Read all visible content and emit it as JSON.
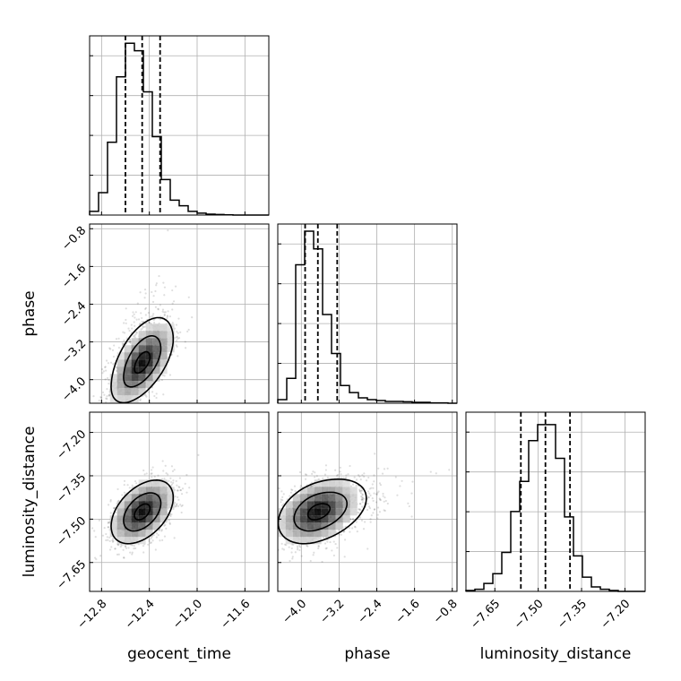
{
  "chart_data": {
    "type": "corner",
    "grid": true,
    "parameters": [
      {
        "name": "geocent_time",
        "range": [
          -12.9,
          -11.4
        ],
        "ticks": [
          -12.8,
          -12.4,
          -12.0,
          -11.6
        ],
        "tick_labels": [
          "−12.8",
          "−12.4",
          "−12.0",
          "−11.6"
        ],
        "quantiles": [
          -12.6,
          -12.46,
          -12.31
        ],
        "hist_edges": [
          -12.9,
          -12.825,
          -12.75,
          -12.675,
          -12.6,
          -12.525,
          -12.45,
          -12.375,
          -12.3,
          -12.225,
          -12.15,
          -12.075,
          -12.0,
          -11.925,
          -11.85,
          -11.775,
          -11.7,
          -11.625,
          -11.55,
          -11.475,
          -11.4
        ],
        "hist_counts": [
          0.02,
          0.12,
          0.39,
          0.74,
          0.92,
          0.88,
          0.66,
          0.42,
          0.19,
          0.08,
          0.05,
          0.02,
          0.01,
          0.005,
          0.003,
          0.001,
          0.0,
          0.0,
          0.0,
          0.0
        ],
        "hist_ymax": 0.95
      },
      {
        "name": "phase",
        "range": [
          -4.5,
          -0.7
        ],
        "ticks": [
          -4.0,
          -3.2,
          -2.4,
          -1.6,
          -0.8
        ],
        "tick_labels": [
          "−4.0",
          "−3.2",
          "−2.4",
          "−1.6",
          "−0.8"
        ],
        "quantiles": [
          -3.92,
          -3.65,
          -3.24
        ],
        "hist_edges": [
          -4.5,
          -4.31,
          -4.12,
          -3.93,
          -3.74,
          -3.55,
          -3.36,
          -3.17,
          -2.98,
          -2.79,
          -2.6,
          -2.41,
          -2.22,
          -2.03,
          -1.84,
          -1.65,
          -1.46,
          -1.27,
          -1.08,
          -0.89,
          -0.7
        ],
        "hist_counts": [
          0.02,
          0.14,
          0.78,
          0.97,
          0.87,
          0.5,
          0.28,
          0.1,
          0.06,
          0.03,
          0.02,
          0.015,
          0.01,
          0.01,
          0.008,
          0.005,
          0.005,
          0.002,
          0.002,
          0.0
        ],
        "hist_ymax": 1.0
      },
      {
        "name": "luminosity_distance",
        "range": [
          -7.75,
          -7.13
        ],
        "ticks": [
          -7.65,
          -7.5,
          -7.35,
          -7.2
        ],
        "tick_labels": [
          "−7.65",
          "−7.50",
          "−7.35",
          "−7.20"
        ],
        "quantiles": [
          -7.56,
          -7.475,
          -7.39
        ],
        "hist_edges": [
          -7.75,
          -7.719,
          -7.688,
          -7.657,
          -7.626,
          -7.595,
          -7.564,
          -7.533,
          -7.502,
          -7.471,
          -7.44,
          -7.409,
          -7.378,
          -7.347,
          -7.316,
          -7.285,
          -7.254,
          -7.223,
          -7.192,
          -7.161,
          -7.13
        ],
        "hist_counts": [
          0.005,
          0.012,
          0.045,
          0.1,
          0.22,
          0.45,
          0.62,
          0.85,
          0.94,
          0.94,
          0.75,
          0.42,
          0.2,
          0.08,
          0.025,
          0.012,
          0.005,
          0.0,
          0.0,
          0.0
        ],
        "hist_ymax": 1.0
      }
    ],
    "pairs": [
      {
        "x": "geocent_time",
        "y": "phase",
        "mean": [
          -12.46,
          -3.65
        ],
        "sd": [
          0.13,
          0.42
        ],
        "rho": 0.6,
        "skew_y": 0.9
      },
      {
        "x": "geocent_time",
        "y": "luminosity_distance",
        "mean": [
          -12.46,
          -7.475
        ],
        "sd": [
          0.13,
          0.055
        ],
        "rho": 0.45,
        "skew_y": 0.0
      },
      {
        "x": "phase",
        "y": "luminosity_distance",
        "mean": [
          -3.65,
          -7.475
        ],
        "sd": [
          0.42,
          0.055
        ],
        "rho": 0.35,
        "skew_x": 0.9
      }
    ]
  }
}
